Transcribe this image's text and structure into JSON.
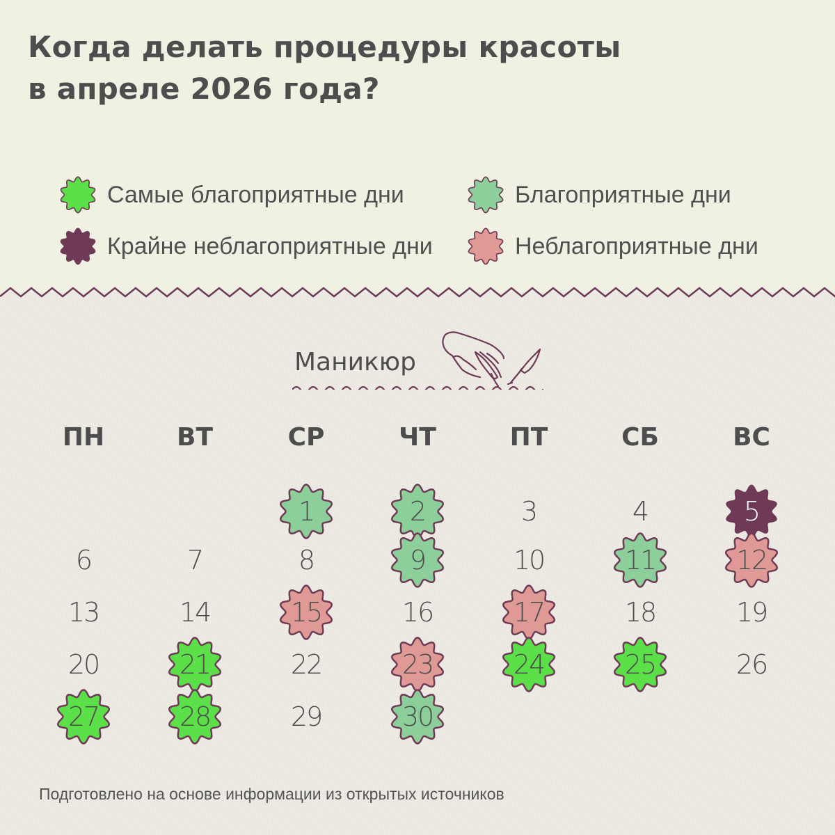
{
  "title": {
    "line1": "Когда делать процедуры красоты",
    "line2": "в апреле 2026 года?"
  },
  "legend": [
    {
      "key": "best",
      "label": "Самые благоприятные дни",
      "color": "#5ce04a",
      "icon": "flower-badge-icon"
    },
    {
      "key": "good",
      "label": "Благоприятные дни",
      "color": "#8ccf9a",
      "icon": "flower-badge-icon"
    },
    {
      "key": "very_bad",
      "label": "Крайне неблагоприятные дни",
      "color": "#6e3a55",
      "icon": "flower-badge-icon"
    },
    {
      "key": "bad",
      "label": "Неблагоприятные дни",
      "color": "#e09a96",
      "icon": "flower-badge-icon"
    }
  ],
  "colors": {
    "stroke": "#6e3a55",
    "top_background": "#f1f1e3",
    "bottom_background": "#efece5",
    "text": "#4d4d4d"
  },
  "section": {
    "title": "Маникюр",
    "icon": "hand-with-nail-polish-icon"
  },
  "calendar": {
    "month": "апрель 2026",
    "weekdays": [
      "ПН",
      "ВТ",
      "СР",
      "ЧТ",
      "ПТ",
      "СБ",
      "ВС"
    ],
    "days": [
      {
        "d": "1",
        "col": 2,
        "row": 0,
        "type": "good"
      },
      {
        "d": "2",
        "col": 3,
        "row": 0,
        "type": "good"
      },
      {
        "d": "3",
        "col": 4,
        "row": 0,
        "type": "none"
      },
      {
        "d": "4",
        "col": 5,
        "row": 0,
        "type": "none"
      },
      {
        "d": "5",
        "col": 6,
        "row": 0,
        "type": "very_bad"
      },
      {
        "d": "6",
        "col": 0,
        "row": 1,
        "type": "none"
      },
      {
        "d": "7",
        "col": 1,
        "row": 1,
        "type": "none"
      },
      {
        "d": "8",
        "col": 2,
        "row": 1,
        "type": "none"
      },
      {
        "d": "9",
        "col": 3,
        "row": 1,
        "type": "good"
      },
      {
        "d": "10",
        "col": 4,
        "row": 1,
        "type": "none"
      },
      {
        "d": "11",
        "col": 5,
        "row": 1,
        "type": "good"
      },
      {
        "d": "12",
        "col": 6,
        "row": 1,
        "type": "bad"
      },
      {
        "d": "13",
        "col": 0,
        "row": 2,
        "type": "none"
      },
      {
        "d": "14",
        "col": 1,
        "row": 2,
        "type": "none"
      },
      {
        "d": "15",
        "col": 2,
        "row": 2,
        "type": "bad"
      },
      {
        "d": "16",
        "col": 3,
        "row": 2,
        "type": "none"
      },
      {
        "d": "17",
        "col": 4,
        "row": 2,
        "type": "bad"
      },
      {
        "d": "18",
        "col": 5,
        "row": 2,
        "type": "none"
      },
      {
        "d": "19",
        "col": 6,
        "row": 2,
        "type": "none"
      },
      {
        "d": "20",
        "col": 0,
        "row": 3,
        "type": "none"
      },
      {
        "d": "21",
        "col": 1,
        "row": 3,
        "type": "best"
      },
      {
        "d": "22",
        "col": 2,
        "row": 3,
        "type": "none"
      },
      {
        "d": "23",
        "col": 3,
        "row": 3,
        "type": "bad"
      },
      {
        "d": "24",
        "col": 4,
        "row": 3,
        "type": "best"
      },
      {
        "d": "25",
        "col": 5,
        "row": 3,
        "type": "best"
      },
      {
        "d": "26",
        "col": 6,
        "row": 3,
        "type": "none"
      },
      {
        "d": "27",
        "col": 0,
        "row": 4,
        "type": "best"
      },
      {
        "d": "28",
        "col": 1,
        "row": 4,
        "type": "best"
      },
      {
        "d": "29",
        "col": 2,
        "row": 4,
        "type": "none"
      },
      {
        "d": "30",
        "col": 3,
        "row": 4,
        "type": "good"
      }
    ]
  },
  "footer": {
    "text": "Подготовлено на основе информации из открытых источников"
  }
}
